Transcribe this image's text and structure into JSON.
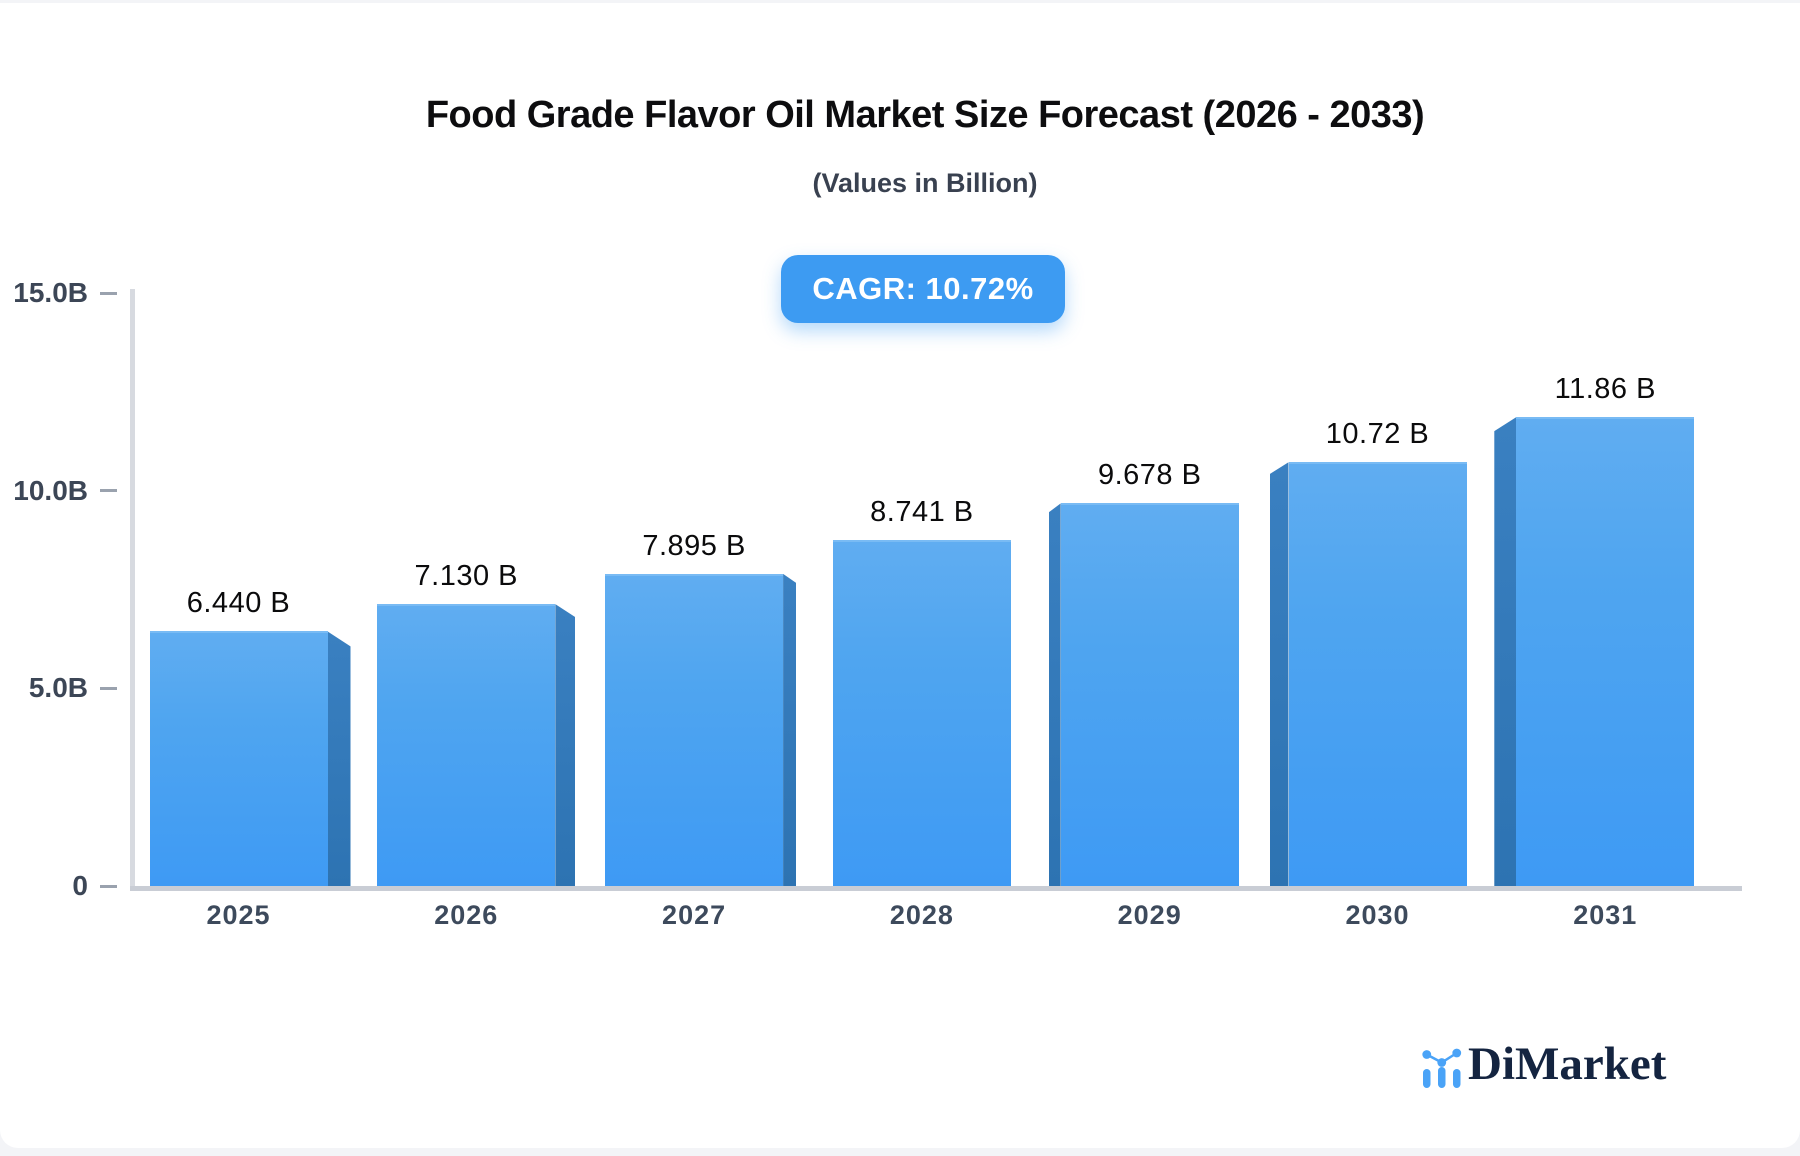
{
  "header": {
    "title": "Food Grade Flavor Oil Market Size Forecast (2026 - 2033)",
    "subtitle": "(Values in Billion)",
    "cagr_label": "CAGR: 10.72%"
  },
  "brand": {
    "name": "DiMarket",
    "icon": "bar-line-chart-icon"
  },
  "colors": {
    "bar_face_top": "#60adf1",
    "bar_face_bottom": "#3e9af4",
    "bar_side_face": "#2d73b2",
    "badge_background": "#3d9bf2",
    "badge_text": "#ffffff",
    "axis_line": "#c9cdd5",
    "tick_text": "#3c4656",
    "value_text": "#0b0b0c",
    "logo_blue": "#4aa3f7",
    "logo_navy": "#142440"
  },
  "chart_data": {
    "type": "bar",
    "title": "Food Grade Flavor Oil Market Size Forecast (2026 - 2033)",
    "subtitle": "(Values in Billion)",
    "cagr": "10.72%",
    "categories": [
      "2025",
      "2026",
      "2027",
      "2028",
      "2029",
      "2030",
      "2031"
    ],
    "values": [
      6.44,
      7.13,
      7.895,
      8.741,
      9.678,
      10.72,
      11.86
    ],
    "value_labels": [
      "6.440 B",
      "7.130 B",
      "7.895 B",
      "8.741 B",
      "9.678 B",
      "10.72 B",
      "11.86 B"
    ],
    "xlabel": "",
    "ylabel": "",
    "ylim": [
      0,
      15
    ],
    "y_ticks": [
      {
        "label": "15.0B",
        "value": 15
      },
      {
        "label": "10.0B",
        "value": 10
      },
      {
        "label": "5.0B",
        "value": 5
      },
      {
        "label": "0",
        "value": 0
      }
    ],
    "grid": false,
    "legend": false,
    "bar_style": "3d-perspective-blue"
  }
}
